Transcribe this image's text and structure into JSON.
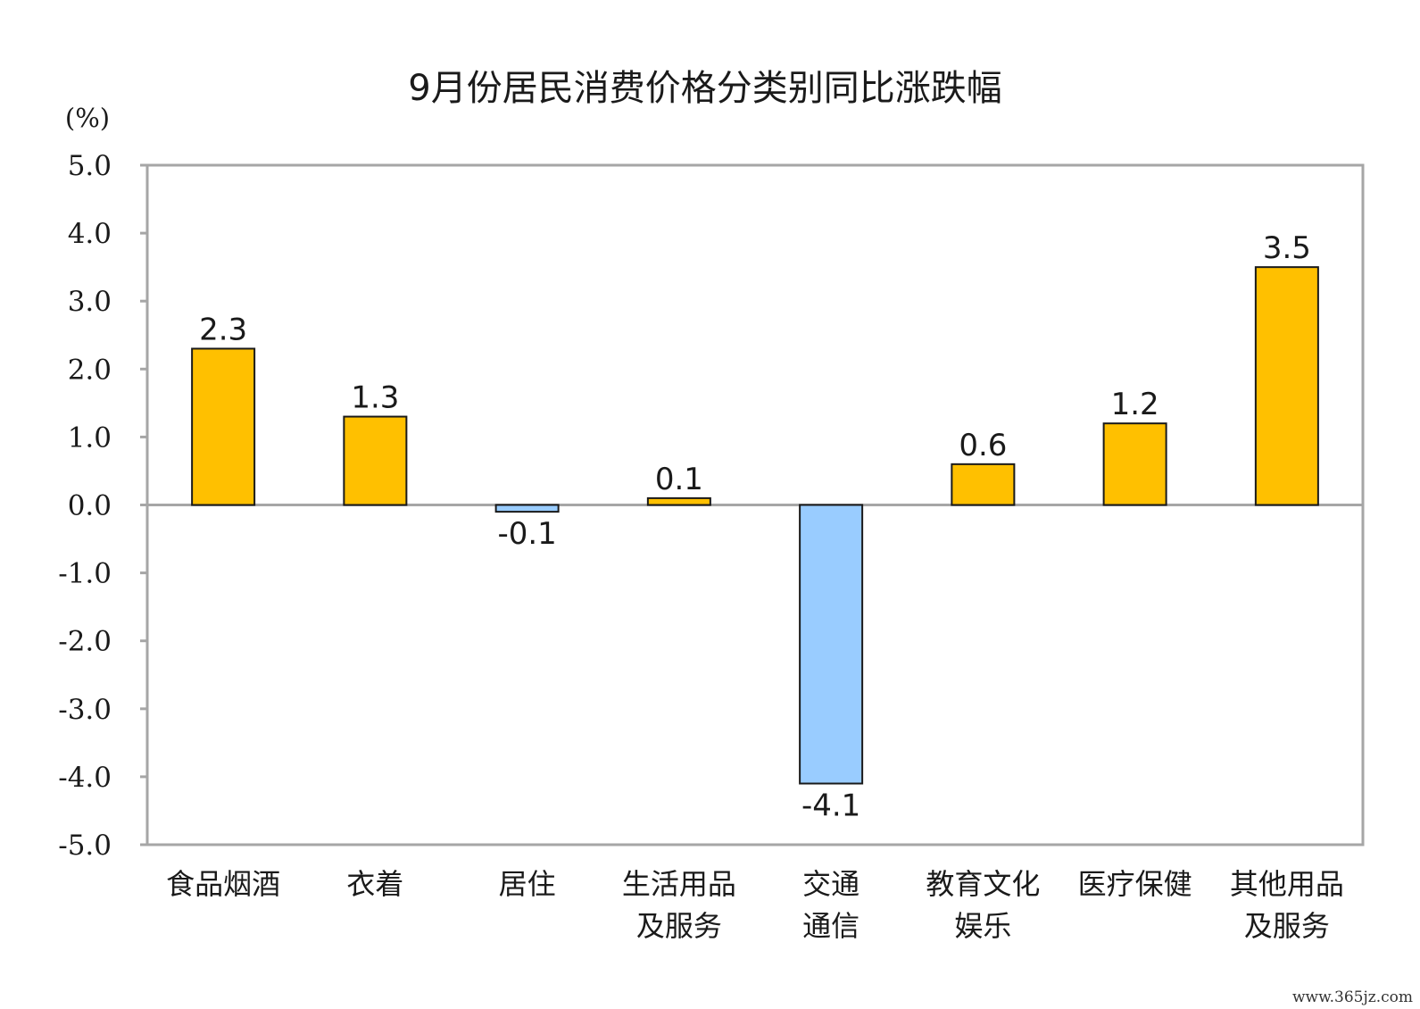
{
  "chart_data": {
    "type": "bar",
    "title": "9月份居民消费价格分类别同比涨跌幅",
    "ylabel": "(%)",
    "xlabel": "",
    "ylim": [
      -5.0,
      5.0
    ],
    "yticks": [
      "5.0",
      "4.0",
      "3.0",
      "2.0",
      "1.0",
      "0.0",
      "-1.0",
      "-2.0",
      "-3.0",
      "-4.0",
      "-5.0"
    ],
    "categories": [
      [
        "食品烟酒"
      ],
      [
        "衣着"
      ],
      [
        "居住"
      ],
      [
        "生活用品",
        "及服务"
      ],
      [
        "交通",
        "通信"
      ],
      [
        "教育文化",
        "娱乐"
      ],
      [
        "医疗保健"
      ],
      [
        "其他用品",
        "及服务"
      ]
    ],
    "values": [
      2.3,
      1.3,
      -0.1,
      0.1,
      -4.1,
      0.6,
      1.2,
      3.5
    ],
    "value_labels": [
      "2.3",
      "1.3",
      "-0.1",
      "0.1",
      "-4.1",
      "0.6",
      "1.2",
      "3.5"
    ],
    "colors": {
      "positive": "#FFC000",
      "negative": "#99CCFF",
      "bar_stroke": "#1a1a1a",
      "frame": "#A6A6A6"
    },
    "grid": false,
    "legend": "none"
  },
  "watermark": "www.365jz.com"
}
